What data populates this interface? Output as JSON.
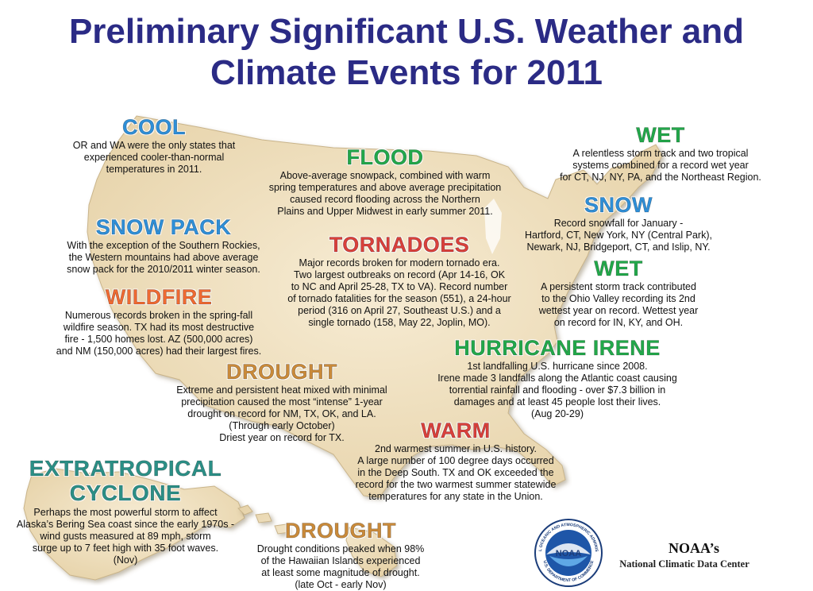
{
  "title": {
    "line1": "Preliminary Significant U.S. Weather and",
    "line2": "Climate Events for 2011"
  },
  "events": {
    "cool": {
      "heading": "COOL",
      "lines": [
        "OR and WA were the only states that",
        "experienced cooler-than-normal",
        "temperatures in 2011."
      ]
    },
    "flood": {
      "heading": "FLOOD",
      "lines": [
        "Above-average snowpack, combined with warm",
        "spring temperatures and above average precipitation",
        "caused record flooding across the Northern",
        "Plains and Upper Midwest in early summer 2011."
      ]
    },
    "wet_northeast": {
      "heading": "WET",
      "lines": [
        "A relentless storm track and two tropical",
        "systems combined for a record wet year",
        "for CT, NJ, NY, PA, and the Northeast Region."
      ]
    },
    "snow": {
      "heading": "SNOW",
      "lines": [
        "Record snowfall for January -",
        "Hartford, CT, New York, NY (Central Park),",
        "Newark, NJ, Bridgeport, CT, and Islip, NY."
      ]
    },
    "snow_pack": {
      "heading": "SNOW PACK",
      "lines": [
        "With the exception of the Southern Rockies,",
        "the Western mountains had above average",
        "snow pack for the 2010/2011 winter season."
      ]
    },
    "tornadoes": {
      "heading": "TORNADOES",
      "lines": [
        "Major records broken for modern tornado era.",
        "Two largest outbreaks on record (Apr 14-16, OK",
        "to NC and April 25-28, TX to VA). Record number",
        "of tornado fatalities for the season (551), a 24-hour",
        "period (316 on April 27, Southeast U.S.) and a",
        "single tornado (158, May 22, Joplin, MO)."
      ]
    },
    "wet_ohio": {
      "heading": "WET",
      "lines": [
        "A persistent storm track contributed",
        "to the Ohio Valley recording its 2nd",
        "wettest year on record. Wettest year",
        "on record for IN, KY, and OH."
      ]
    },
    "wildfire": {
      "heading": "WILDFIRE",
      "lines": [
        "Numerous records broken in the spring-fall",
        "wildfire season. TX had its most destructive",
        "fire - 1,500 homes lost. AZ (500,000 acres)",
        "and NM (150,000 acres) had their largest fires."
      ]
    },
    "hurricane_irene": {
      "heading": "HURRICANE IRENE",
      "lines": [
        "1st landfalling U.S. hurricane since 2008.",
        "Irene made 3 landfalls along the Atlantic coast causing",
        "torrential rainfall and flooding - over $7.3 billion in",
        "damages and at least 45 people lost their lives.",
        "(Aug 20-29)"
      ]
    },
    "drought_texas": {
      "heading": "DROUGHT",
      "lines": [
        "Extreme and persistent heat mixed with minimal",
        "precipitation caused the most “intense” 1-year",
        "drought on record for NM, TX, OK, and LA.",
        "(Through early October)",
        "Driest year on record for TX."
      ]
    },
    "warm": {
      "heading": "WARM",
      "lines": [
        "2nd warmest summer in U.S. history.",
        "A large number of 100 degree days occurred",
        "in the Deep South. TX and OK exceeded the",
        "record for the two warmest summer statewide",
        "temperatures for any state in the Union."
      ]
    },
    "extratropical_cyclone": {
      "heading_line1": "EXTRATROPICAL",
      "heading_line2": "CYCLONE",
      "lines": [
        "Perhaps the most powerful storm to affect",
        "Alaska’s Bering Sea coast since the early 1970s -",
        "wind gusts measured at 89 mph, storm",
        "surge up to 7 feet high with 35 foot waves.",
        "(Nov)"
      ]
    },
    "drought_hawaii": {
      "heading": "DROUGHT",
      "lines": [
        "Drought conditions peaked when 98%",
        "of the Hawaiian Islands experienced",
        "at least some magnitude of drought.",
        "(late Oct - early Nov)"
      ]
    }
  },
  "logo": {
    "center_text": "NOAA",
    "ring_top": "NATIONAL OCEANIC AND ATMOSPHERIC ADMINISTRATION",
    "ring_bottom": "U.S. DEPARTMENT OF COMMERCE",
    "agency": "NOAA’s",
    "center_name": "National Climatic Data Center"
  },
  "colors": {
    "title": "#2b2b85",
    "map_fill": "#efe0c0",
    "cool": "#2e8fd8",
    "flood": "#22a84a",
    "tornadoes": "#d9403b",
    "wildfire": "#ee6a32",
    "drought": "#c98a3a",
    "cyclone": "#2b8f86"
  }
}
